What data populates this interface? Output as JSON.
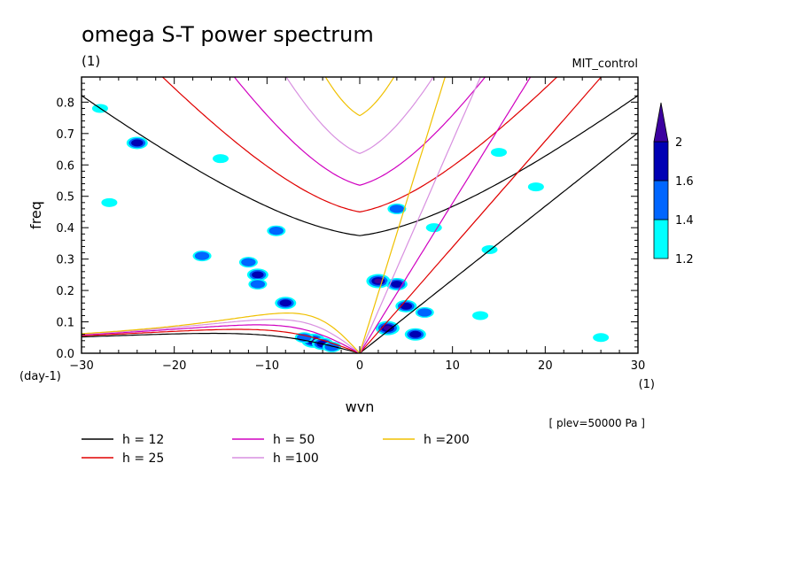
{
  "chart_data": {
    "type": "heatmap",
    "title": "omega S-T power spectrum",
    "subtitle_left": "(1)",
    "subtitle_right": "MIT_control",
    "xlabel": "wvn",
    "ylabel": "freq",
    "x_unit_label": "(1)",
    "y_unit_label": "(day-1)",
    "annotation": "[ plev=50000 Pa ]",
    "xlim": [
      -30,
      30
    ],
    "ylim": [
      0,
      0.88
    ],
    "x_ticks": [
      -30,
      -20,
      -10,
      0,
      10,
      20,
      30
    ],
    "y_ticks": [
      0.0,
      0.1,
      0.2,
      0.3,
      0.4,
      0.5,
      0.6,
      0.7,
      0.8
    ],
    "x_tick_labels": [
      "−30",
      "−20",
      "−10",
      "0",
      "10",
      "20",
      "30"
    ],
    "y_tick_labels": [
      "0.0",
      "0.1",
      "0.2",
      "0.3",
      "0.4",
      "0.5",
      "0.6",
      "0.7",
      "0.8"
    ],
    "grid": false,
    "colorbar": {
      "levels": [
        1.2,
        1.4,
        1.6,
        2
      ],
      "labels": [
        "1.2",
        "1.4",
        "1.6",
        "2"
      ],
      "colors": [
        "#00ffff",
        "#0066ff",
        "#0000b4",
        "#3c00a0"
      ],
      "extend": "max"
    },
    "dispersion_curves": [
      {
        "name": "h = 12",
        "h": 12,
        "color": "#000000"
      },
      {
        "name": "h = 25",
        "h": 25,
        "color": "#e00000"
      },
      {
        "name": "h = 50",
        "h": 50,
        "color": "#d000c0"
      },
      {
        "name": "h =100",
        "h": 100,
        "color": "#d890e0"
      },
      {
        "name": "h =200",
        "h": 200,
        "color": "#f0c000"
      }
    ],
    "spectral_peaks": [
      {
        "x": -5,
        "y": 0.04,
        "level": 2
      },
      {
        "x": -4,
        "y": 0.03,
        "level": 1.6
      },
      {
        "x": -6,
        "y": 0.05,
        "level": 1.4
      },
      {
        "x": -3,
        "y": 0.02,
        "level": 1.4
      },
      {
        "x": -8,
        "y": 0.16,
        "level": 1.6
      },
      {
        "x": -11,
        "y": 0.25,
        "level": 1.6
      },
      {
        "x": -11,
        "y": 0.22,
        "level": 1.4
      },
      {
        "x": -12,
        "y": 0.29,
        "level": 1.4
      },
      {
        "x": -24,
        "y": 0.67,
        "level": 1.6
      },
      {
        "x": -9,
        "y": 0.39,
        "level": 1.4
      },
      {
        "x": -17,
        "y": 0.31,
        "level": 1.4
      },
      {
        "x": -28,
        "y": 0.78,
        "level": 1.2
      },
      {
        "x": -27,
        "y": 0.48,
        "level": 1.2
      },
      {
        "x": -15,
        "y": 0.62,
        "level": 1.2
      },
      {
        "x": 2,
        "y": 0.23,
        "level": 2
      },
      {
        "x": 4,
        "y": 0.22,
        "level": 1.6
      },
      {
        "x": 5,
        "y": 0.15,
        "level": 1.6
      },
      {
        "x": 3,
        "y": 0.08,
        "level": 2
      },
      {
        "x": 6,
        "y": 0.06,
        "level": 1.6
      },
      {
        "x": 4,
        "y": 0.46,
        "level": 1.4
      },
      {
        "x": 7,
        "y": 0.13,
        "level": 1.4
      },
      {
        "x": 8,
        "y": 0.4,
        "level": 1.2
      },
      {
        "x": 13,
        "y": 0.12,
        "level": 1.2
      },
      {
        "x": 15,
        "y": 0.64,
        "level": 1.2
      },
      {
        "x": 19,
        "y": 0.53,
        "level": 1.2
      },
      {
        "x": 26,
        "y": 0.05,
        "level": 1.2
      },
      {
        "x": 14,
        "y": 0.33,
        "level": 1.2
      }
    ]
  }
}
